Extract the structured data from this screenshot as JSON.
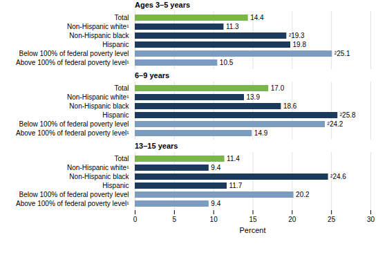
{
  "chart_data": [
    {
      "type": "bar",
      "orientation": "horizontal",
      "title": "Ages 3–5 years",
      "categories": [
        "Total",
        "Non-Hispanic white¹",
        "Non-Hispanic black",
        "Hispanic",
        "Below 100% of federal poverty level",
        "Above 100% of federal poverty level¹"
      ],
      "values": [
        14.4,
        11.3,
        19.3,
        19.8,
        25.1,
        10.5
      ],
      "value_labels": [
        "14.4",
        "11.3",
        "²19.3",
        "19.8",
        "²25.1",
        "10.5"
      ],
      "colors": [
        "#7ab648",
        "#1b3a5c",
        "#1b3a5c",
        "#1b3a5c",
        "#7b9cbf",
        "#7b9cbf"
      ],
      "xlim": [
        0,
        30
      ],
      "xticks": [
        0,
        5,
        10,
        15,
        20,
        25,
        30
      ],
      "grid": true,
      "data_labels": true,
      "tick_labels": "y"
    },
    {
      "type": "bar",
      "orientation": "horizontal",
      "title": "6–9 years",
      "categories": [
        "Total",
        "Non-Hispanic white¹",
        "Non-Hispanic black",
        "Hispanic",
        "Below 100% of federal poverty level",
        "Above 100% of federal poverty level¹"
      ],
      "values": [
        17.0,
        13.9,
        18.6,
        25.8,
        24.2,
        14.9
      ],
      "value_labels": [
        "17.0",
        "13.9",
        "18.6",
        "²25.8",
        "²24.2",
        "14.9"
      ],
      "colors": [
        "#7ab648",
        "#1b3a5c",
        "#1b3a5c",
        "#1b3a5c",
        "#7b9cbf",
        "#7b9cbf"
      ],
      "xlim": [
        0,
        30
      ],
      "xticks": [
        0,
        5,
        10,
        15,
        20,
        25,
        30
      ],
      "grid": true,
      "data_labels": true,
      "tick_labels": "y"
    },
    {
      "type": "bar",
      "orientation": "horizontal",
      "title": "13–15 years",
      "categories": [
        "Total",
        "Non-Hispanic white¹",
        "Non-Hispanic black",
        "Hispanic",
        "Below 100% of federal poverty level",
        "Above 100% of federal poverty level¹"
      ],
      "values": [
        11.4,
        9.4,
        24.6,
        11.7,
        20.2,
        9.4
      ],
      "value_labels": [
        "11.4",
        "9.4",
        "²24.6",
        "11.7",
        "20.2",
        "9.4"
      ],
      "colors": [
        "#7ab648",
        "#1b3a5c",
        "#1b3a5c",
        "#1b3a5c",
        "#7b9cbf",
        "#7b9cbf"
      ],
      "xlabel": "Percent",
      "xlim": [
        0,
        30
      ],
      "xticks": [
        0,
        5,
        10,
        15,
        20,
        25,
        30
      ],
      "grid": true,
      "data_labels": true
    }
  ]
}
